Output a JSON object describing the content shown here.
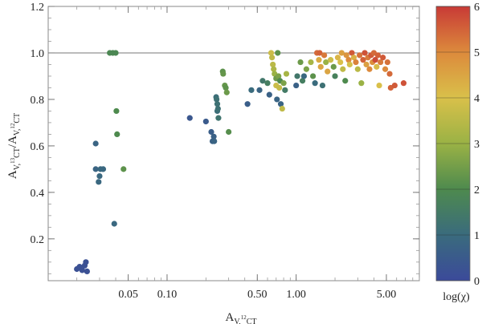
{
  "chart_data": {
    "type": "scatter",
    "xscale": "log",
    "xlim": [
      0.012,
      9.0
    ],
    "ylim": [
      0.02,
      1.2
    ],
    "xticks": [
      0.05,
      0.1,
      0.5,
      1.0,
      5.0
    ],
    "xtick_labels": [
      "0.05",
      "0.10",
      "0.50",
      "1.00",
      "5.00"
    ],
    "yticks": [
      0.2,
      0.4,
      0.6,
      0.8,
      1.0,
      1.2
    ],
    "ytick_labels": [
      "0.2",
      "0.4",
      "0.6",
      "0.8",
      "1.0",
      "1.2"
    ],
    "reference_line_y": 1.0,
    "xlabel": {
      "main": "A",
      "sub": "V,",
      "sup": "12",
      "sub2": "CT"
    },
    "ylabel": {
      "num_main": "A",
      "num_sub": "V,",
      "num_sup": "13",
      "num_sub2": "CT",
      "sep": "/",
      "den_main": "A",
      "den_sub": "V,",
      "den_sup": "12",
      "den_sub2": "CT"
    },
    "colorbar": {
      "label": "log(χ)",
      "range": [
        0,
        6
      ],
      "ticks": [
        0,
        1,
        2,
        3,
        4,
        5,
        6
      ],
      "tick_labels": [
        "0",
        "1",
        "2",
        "3",
        "4",
        "5",
        "6"
      ],
      "colors": [
        "#3b4a9a",
        "#3a6b7d",
        "#4e8a4e",
        "#9ab245",
        "#d9c04a",
        "#dc8a3c",
        "#c83a36"
      ]
    },
    "grid": false,
    "points": [
      {
        "x": 0.02,
        "y": 0.07,
        "c": 0.2
      },
      {
        "x": 0.021,
        "y": 0.08,
        "c": 0.2
      },
      {
        "x": 0.022,
        "y": 0.065,
        "c": 0.2
      },
      {
        "x": 0.023,
        "y": 0.085,
        "c": 0.2
      },
      {
        "x": 0.0235,
        "y": 0.1,
        "c": 0.2
      },
      {
        "x": 0.024,
        "y": 0.06,
        "c": 0.2
      },
      {
        "x": 0.028,
        "y": 0.61,
        "c": 0.8
      },
      {
        "x": 0.028,
        "y": 0.5,
        "c": 0.8
      },
      {
        "x": 0.0295,
        "y": 0.445,
        "c": 0.9
      },
      {
        "x": 0.03,
        "y": 0.47,
        "c": 0.9
      },
      {
        "x": 0.0305,
        "y": 0.5,
        "c": 0.9
      },
      {
        "x": 0.032,
        "y": 0.5,
        "c": 0.9
      },
      {
        "x": 0.036,
        "y": 1.0,
        "c": 1.9
      },
      {
        "x": 0.038,
        "y": 1.0,
        "c": 1.9
      },
      {
        "x": 0.039,
        "y": 0.265,
        "c": 0.9
      },
      {
        "x": 0.04,
        "y": 1.0,
        "c": 1.9
      },
      {
        "x": 0.0405,
        "y": 0.75,
        "c": 2.0
      },
      {
        "x": 0.041,
        "y": 0.65,
        "c": 2.0
      },
      {
        "x": 0.046,
        "y": 0.5,
        "c": 2.2
      },
      {
        "x": 0.15,
        "y": 0.72,
        "c": 0.4
      },
      {
        "x": 0.2,
        "y": 0.705,
        "c": 0.5
      },
      {
        "x": 0.22,
        "y": 0.66,
        "c": 0.6
      },
      {
        "x": 0.225,
        "y": 0.62,
        "c": 0.7
      },
      {
        "x": 0.23,
        "y": 0.64,
        "c": 0.7
      },
      {
        "x": 0.232,
        "y": 0.62,
        "c": 0.8
      },
      {
        "x": 0.24,
        "y": 0.81,
        "c": 1.1
      },
      {
        "x": 0.242,
        "y": 0.8,
        "c": 1.2
      },
      {
        "x": 0.245,
        "y": 0.78,
        "c": 1.2
      },
      {
        "x": 0.245,
        "y": 0.75,
        "c": 1.1
      },
      {
        "x": 0.25,
        "y": 0.72,
        "c": 1.3
      },
      {
        "x": 0.248,
        "y": 0.76,
        "c": 1.2
      },
      {
        "x": 0.27,
        "y": 0.92,
        "c": 2.2
      },
      {
        "x": 0.272,
        "y": 0.91,
        "c": 2.3
      },
      {
        "x": 0.28,
        "y": 0.86,
        "c": 2.3
      },
      {
        "x": 0.285,
        "y": 0.85,
        "c": 2.2
      },
      {
        "x": 0.29,
        "y": 0.83,
        "c": 2.4
      },
      {
        "x": 0.3,
        "y": 0.66,
        "c": 2.1
      },
      {
        "x": 0.42,
        "y": 0.78,
        "c": 0.6
      },
      {
        "x": 0.45,
        "y": 0.84,
        "c": 1.0
      },
      {
        "x": 0.52,
        "y": 0.84,
        "c": 0.8
      },
      {
        "x": 0.55,
        "y": 0.88,
        "c": 1.4
      },
      {
        "x": 0.6,
        "y": 0.87,
        "c": 1.6
      },
      {
        "x": 0.62,
        "y": 0.82,
        "c": 0.7
      },
      {
        "x": 0.64,
        "y": 1.0,
        "c": 3.8
      },
      {
        "x": 0.65,
        "y": 0.98,
        "c": 3.6
      },
      {
        "x": 0.66,
        "y": 0.95,
        "c": 3.5
      },
      {
        "x": 0.67,
        "y": 0.93,
        "c": 3.3
      },
      {
        "x": 0.68,
        "y": 0.91,
        "c": 3.0
      },
      {
        "x": 0.7,
        "y": 0.89,
        "c": 2.4
      },
      {
        "x": 0.7,
        "y": 0.86,
        "c": 3.8
      },
      {
        "x": 0.71,
        "y": 0.8,
        "c": 0.8
      },
      {
        "x": 0.72,
        "y": 1.0,
        "c": 2.2
      },
      {
        "x": 0.73,
        "y": 0.9,
        "c": 2.6
      },
      {
        "x": 0.74,
        "y": 0.85,
        "c": 3.7
      },
      {
        "x": 0.75,
        "y": 0.88,
        "c": 2.0
      },
      {
        "x": 0.76,
        "y": 0.78,
        "c": 0.8
      },
      {
        "x": 0.78,
        "y": 0.76,
        "c": 3.6
      },
      {
        "x": 0.8,
        "y": 0.87,
        "c": 2.6
      },
      {
        "x": 0.82,
        "y": 0.84,
        "c": 1.5
      },
      {
        "x": 0.84,
        "y": 0.91,
        "c": 3.2
      },
      {
        "x": 1.0,
        "y": 0.86,
        "c": 0.7
      },
      {
        "x": 1.02,
        "y": 0.9,
        "c": 1.4
      },
      {
        "x": 1.08,
        "y": 0.96,
        "c": 2.4
      },
      {
        "x": 1.12,
        "y": 0.88,
        "c": 1.6
      },
      {
        "x": 1.15,
        "y": 0.9,
        "c": 0.9
      },
      {
        "x": 1.2,
        "y": 0.93,
        "c": 2.6
      },
      {
        "x": 1.3,
        "y": 0.96,
        "c": 3.2
      },
      {
        "x": 1.35,
        "y": 0.9,
        "c": 2.2
      },
      {
        "x": 1.4,
        "y": 0.87,
        "c": 1.0
      },
      {
        "x": 1.45,
        "y": 1.0,
        "c": 5.4
      },
      {
        "x": 1.5,
        "y": 0.97,
        "c": 4.4
      },
      {
        "x": 1.52,
        "y": 1.0,
        "c": 5.5
      },
      {
        "x": 1.55,
        "y": 0.94,
        "c": 4.5
      },
      {
        "x": 1.6,
        "y": 0.86,
        "c": 1.2
      },
      {
        "x": 1.65,
        "y": 0.99,
        "c": 5.2
      },
      {
        "x": 1.7,
        "y": 0.96,
        "c": 3.0
      },
      {
        "x": 1.75,
        "y": 0.92,
        "c": 4.5
      },
      {
        "x": 1.85,
        "y": 0.97,
        "c": 3.8
      },
      {
        "x": 1.95,
        "y": 0.94,
        "c": 2.4
      },
      {
        "x": 2.0,
        "y": 0.9,
        "c": 1.7
      },
      {
        "x": 2.1,
        "y": 0.98,
        "c": 4.2
      },
      {
        "x": 2.2,
        "y": 0.96,
        "c": 4.0
      },
      {
        "x": 2.25,
        "y": 1.0,
        "c": 4.6
      },
      {
        "x": 2.3,
        "y": 0.93,
        "c": 3.6
      },
      {
        "x": 2.4,
        "y": 0.88,
        "c": 2.0
      },
      {
        "x": 2.45,
        "y": 0.99,
        "c": 4.8
      },
      {
        "x": 2.55,
        "y": 0.97,
        "c": 5.0
      },
      {
        "x": 2.6,
        "y": 0.95,
        "c": 3.9
      },
      {
        "x": 2.7,
        "y": 1.0,
        "c": 5.6
      },
      {
        "x": 2.8,
        "y": 0.98,
        "c": 4.3
      },
      {
        "x": 2.9,
        "y": 0.96,
        "c": 5.1
      },
      {
        "x": 3.0,
        "y": 0.93,
        "c": 3.5
      },
      {
        "x": 3.1,
        "y": 0.99,
        "c": 5.3
      },
      {
        "x": 3.2,
        "y": 0.87,
        "c": 3.0
      },
      {
        "x": 3.3,
        "y": 0.97,
        "c": 5.5
      },
      {
        "x": 3.4,
        "y": 1.0,
        "c": 5.7
      },
      {
        "x": 3.5,
        "y": 0.95,
        "c": 4.6
      },
      {
        "x": 3.6,
        "y": 0.98,
        "c": 5.2
      },
      {
        "x": 3.7,
        "y": 0.93,
        "c": 5.0
      },
      {
        "x": 3.8,
        "y": 0.99,
        "c": 5.6
      },
      {
        "x": 3.9,
        "y": 0.96,
        "c": 4.9
      },
      {
        "x": 4.0,
        "y": 1.0,
        "c": 5.4
      },
      {
        "x": 4.1,
        "y": 0.97,
        "c": 5.8
      },
      {
        "x": 4.2,
        "y": 0.94,
        "c": 4.1
      },
      {
        "x": 4.3,
        "y": 0.99,
        "c": 5.5
      },
      {
        "x": 4.4,
        "y": 0.86,
        "c": 4.0
      },
      {
        "x": 4.5,
        "y": 0.96,
        "c": 5.2
      },
      {
        "x": 4.7,
        "y": 0.98,
        "c": 5.6
      },
      {
        "x": 4.9,
        "y": 0.93,
        "c": 5.0
      },
      {
        "x": 5.1,
        "y": 0.96,
        "c": 5.3
      },
      {
        "x": 5.3,
        "y": 0.91,
        "c": 5.4
      },
      {
        "x": 5.4,
        "y": 0.85,
        "c": 5.5
      },
      {
        "x": 5.8,
        "y": 0.86,
        "c": 5.6
      },
      {
        "x": 6.8,
        "y": 0.87,
        "c": 5.7
      }
    ]
  }
}
